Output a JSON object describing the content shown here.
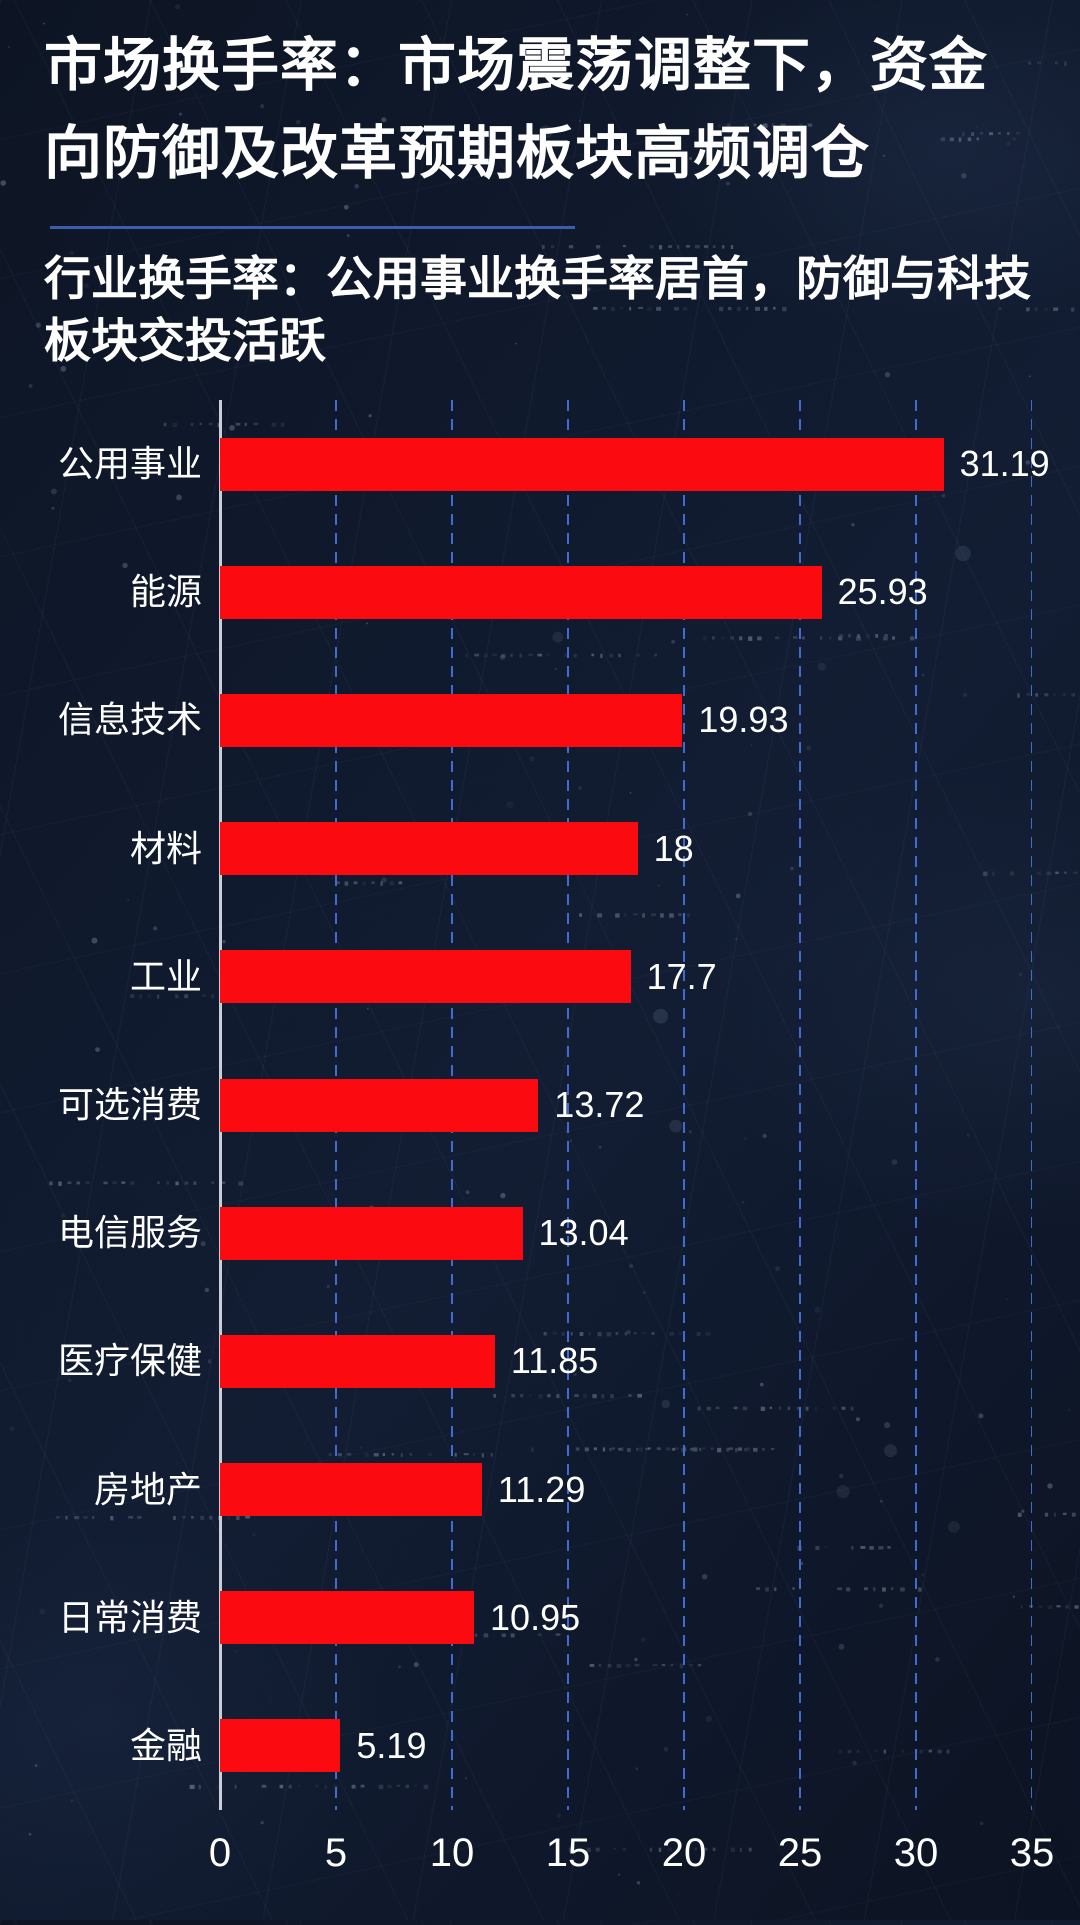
{
  "page": {
    "title_line1": "市场换手率：市场震荡调整下，资金",
    "title_line2": "向防御及改革预期板块高频调仓",
    "subtitle_line1": "行业换手率：公用事业换手率居首，防御与科技",
    "subtitle_line2": "板块交投活跃"
  },
  "colors": {
    "background": "#0e1627",
    "bar": "#fb0b10",
    "gridline": "#3e6cd0",
    "axis": "#c9ced8",
    "divider": "#3c5cb0",
    "text": "#ffffff"
  },
  "chart_data": {
    "type": "bar",
    "orientation": "horizontal",
    "title": "行业换手率：公用事业换手率居首，防御与科技板块交投活跃",
    "categories": [
      "公用事业",
      "能源",
      "信息技术",
      "材料",
      "工业",
      "可选消费",
      "电信服务",
      "医疗保健",
      "房地产",
      "日常消费",
      "金融"
    ],
    "values": [
      31.19,
      25.93,
      19.93,
      18,
      17.7,
      13.72,
      13.04,
      11.85,
      11.29,
      10.95,
      5.19
    ],
    "value_labels": [
      "31.19",
      "25.93",
      "19.93",
      "18",
      "17.7",
      "13.72",
      "13.04",
      "11.85",
      "11.29",
      "10.95",
      "5.19"
    ],
    "xlabel": "",
    "ylabel": "",
    "xlim": [
      0,
      35
    ],
    "xticks": [
      0,
      5,
      10,
      15,
      20,
      25,
      30,
      35
    ],
    "grid": "dashed-vertical",
    "legend": null
  }
}
